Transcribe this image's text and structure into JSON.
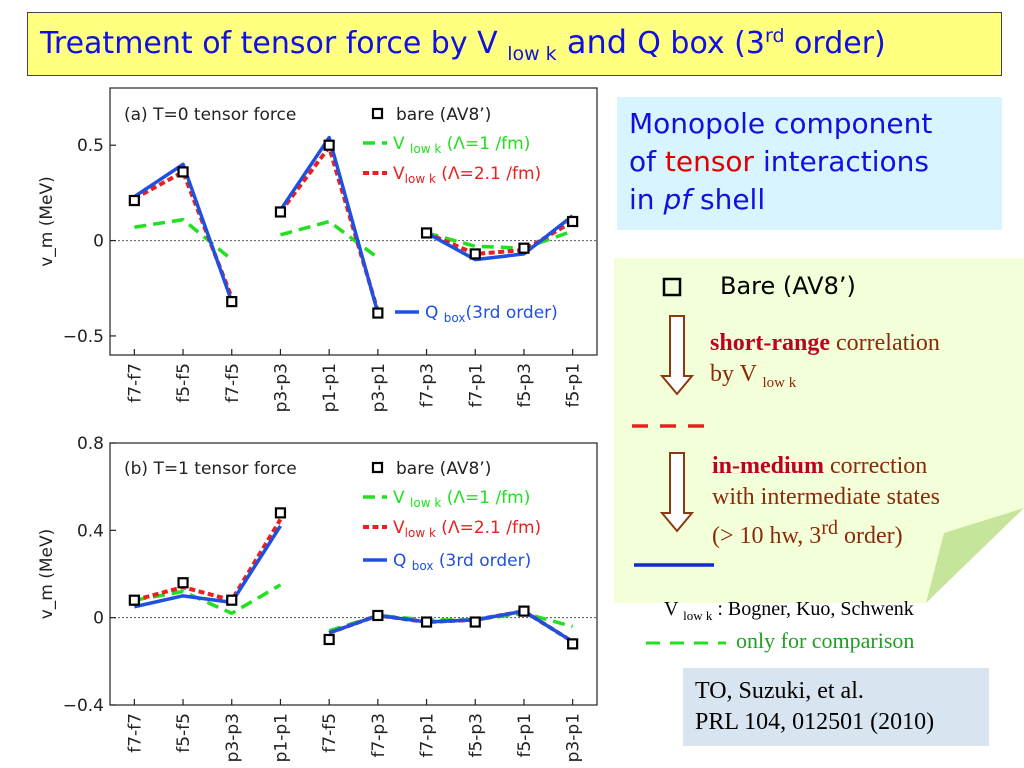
{
  "slide": {
    "title_main": "Treatment of tensor force by V ",
    "title_sub": "low k",
    "title_and": " and ",
    "title_q": "Q box (3",
    "title_sup": "rd",
    "title_end": " order)"
  },
  "monopole_box": {
    "line1": "Monopole component",
    "line2_pre": "of ",
    "line2_red": "tensor",
    "line2_post": " interactions",
    "line3_pre": "in ",
    "line3_italic": "pf",
    "line3_post": " shell"
  },
  "note": {
    "bare_label": "Bare (AV8’)",
    "short_range_bold": "short-range",
    "short_range_text": " correlation",
    "by_v": "by V ",
    "by_v_sub": "low k",
    "in_medium_bold": "in-medium",
    "in_medium_text": " correction",
    "intermediate": "with intermediate states",
    "order_pre": "(> 10 hw,  3",
    "order_sup": "rd",
    "order_post": " order)",
    "ref_v": "V ",
    "ref_sub": "low k",
    "ref_text": " :  Bogner, Kuo, Schwenk",
    "comparison": "only for comparison"
  },
  "citation": {
    "line1": "TO, Suzuki, et al.",
    "line2": "PRL 104, 012501 (2010)"
  },
  "colors": {
    "title_bg": "#ffff80",
    "title_text": "#1010e0",
    "bare": "#000000",
    "vlowk_1": "#20e020",
    "vlowk_21": "#e82020",
    "qbox": "#2050e0",
    "note_bg": "#f2ffd8",
    "monopole_bg": "#d8f4ff",
    "citation_bg": "#d8e4f0"
  },
  "chart_data": [
    {
      "type": "line",
      "panel_label": "(a) T=0 tensor force",
      "ylabel": "v_m (MeV)",
      "ylim": [
        -0.6,
        0.8
      ],
      "yticks": [
        -0.5,
        0,
        0.5
      ],
      "ytick_labels": [
        "−0.5",
        "0",
        "0.5"
      ],
      "categories": [
        "f7-f7",
        "f5-f5",
        "f7-f5",
        "p3-p3",
        "p1-p1",
        "p3-p1",
        "f7-p3",
        "f7-p1",
        "f5-p3",
        "f5-p1"
      ],
      "segments": [
        [
          0,
          2
        ],
        [
          3,
          5
        ],
        [
          6,
          9
        ]
      ],
      "legend": {
        "bare": "bare (AV8’)",
        "v1_prefix": "V ",
        "v1_sub": "low k",
        "v1_suffix": " (Λ=1 /fm)",
        "v21_prefix": "V",
        "v21_sub": "low k",
        "v21_suffix": "  (Λ=2.1 /fm)",
        "q_prefix": "Q ",
        "q_sub": "box",
        "q_suffix": "(3rd order)"
      },
      "series": [
        {
          "name": "bare (AV8’)",
          "key": "bare",
          "values": [
            0.21,
            0.36,
            -0.32,
            0.15,
            0.5,
            -0.38,
            0.04,
            -0.07,
            -0.04,
            0.1
          ]
        },
        {
          "name": "V low k (Λ=1 /fm)",
          "key": "v1",
          "values": [
            0.07,
            0.11,
            -0.1,
            0.03,
            0.1,
            -0.09,
            0.04,
            -0.03,
            -0.04,
            0.05
          ]
        },
        {
          "name": "V low k (Λ=2.1 /fm)",
          "key": "v21",
          "values": [
            0.22,
            0.36,
            -0.3,
            0.15,
            0.49,
            -0.37,
            0.04,
            -0.07,
            -0.05,
            0.1
          ]
        },
        {
          "name": "Q box(3rd order)",
          "key": "qbox",
          "values": [
            0.23,
            0.4,
            -0.32,
            0.16,
            0.54,
            -0.38,
            0.04,
            -0.1,
            -0.07,
            0.13
          ]
        }
      ]
    },
    {
      "type": "line",
      "panel_label": "(b) T=1 tensor force",
      "ylabel": "v_m (MeV)",
      "ylim": [
        -0.4,
        0.8
      ],
      "yticks": [
        -0.4,
        0,
        0.4,
        0.8
      ],
      "ytick_labels": [
        "−0.4",
        "0",
        "0.4",
        "0.8"
      ],
      "categories": [
        "f7-f7",
        "f5-f5",
        "p3-p3",
        "p1-p1",
        "f7-f5",
        "f7-p3",
        "f7-p1",
        "f5-p3",
        "f5-p1",
        "p3-p1"
      ],
      "segments": [
        [
          0,
          3
        ],
        [
          4,
          9
        ]
      ],
      "legend": {
        "bare": "bare (AV8’)",
        "v1_prefix": "V ",
        "v1_sub": "low k",
        "v1_suffix": " (Λ=1 /fm)",
        "v21_prefix": "V",
        "v21_sub": "low k",
        "v21_suffix": "  (Λ=2.1 /fm)",
        "q_prefix": "Q ",
        "q_sub": "box",
        "q_suffix": " (3rd order)"
      },
      "series": [
        {
          "name": "bare (AV8’)",
          "key": "bare",
          "values": [
            0.08,
            0.16,
            0.08,
            0.48,
            -0.1,
            0.01,
            -0.02,
            -0.02,
            0.03,
            -0.12
          ]
        },
        {
          "name": "V low k (Λ=1 /fm)",
          "key": "v1",
          "values": [
            0.08,
            0.12,
            0.02,
            0.15,
            -0.06,
            0.01,
            -0.01,
            -0.01,
            0.02,
            -0.04
          ]
        },
        {
          "name": "V low k (Λ=2.1 /fm)",
          "key": "v21",
          "values": [
            0.08,
            0.14,
            0.08,
            0.45,
            -0.07,
            0.01,
            -0.02,
            -0.01,
            0.03,
            -0.11
          ]
        },
        {
          "name": "Q box (3rd order)",
          "key": "qbox",
          "values": [
            0.05,
            0.1,
            0.07,
            0.42,
            -0.07,
            0.01,
            -0.02,
            -0.01,
            0.03,
            -0.11
          ]
        }
      ]
    }
  ]
}
